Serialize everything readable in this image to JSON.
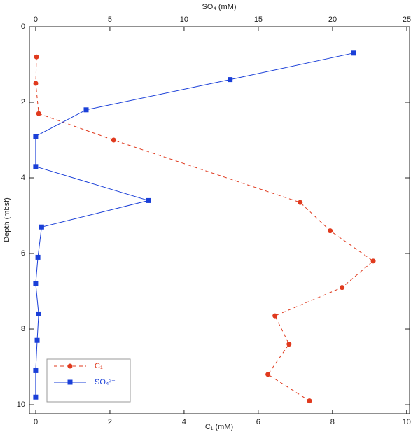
{
  "chart_data": {
    "type": "depth-profile",
    "xlabel": "C₁ (mM)",
    "x2label": "SO₄ (mM)",
    "ylabel": "Depth (mbsf)",
    "xlim": [
      -0.17,
      10.08
    ],
    "xticks": [
      0,
      2,
      4,
      6,
      8,
      10
    ],
    "x2lim": [
      -0.42,
      25.19
    ],
    "x2ticks": [
      0,
      5,
      10,
      15,
      20,
      25
    ],
    "ylim": [
      0,
      10.24
    ],
    "yticks": [
      0,
      2,
      4,
      6,
      8,
      10
    ],
    "y_inverted": true,
    "legend": "lower left",
    "series": [
      {
        "name": "C₁",
        "color": "#e03a1e",
        "axis": "x",
        "marker": "circle",
        "dashed": true,
        "x": [
          0.02,
          0,
          0.08,
          2.1,
          7.13,
          7.94,
          9.1,
          8.26,
          6.45,
          6.83,
          6.26,
          7.38
        ],
        "y": [
          0.8,
          1.5,
          2.3,
          3.0,
          4.65,
          5.4,
          6.2,
          6.9,
          7.65,
          8.4,
          9.2,
          9.9
        ]
      },
      {
        "name": "SO₄²⁻",
        "color": "#1a3fd8",
        "axis": "x2",
        "marker": "square",
        "dashed": false,
        "x": [
          21.4,
          13.1,
          3.4,
          0,
          0,
          7.6,
          0.4,
          0.15,
          0,
          0.2,
          0.1,
          0,
          0
        ],
        "y": [
          0.7,
          1.4,
          2.2,
          2.9,
          3.7,
          4.6,
          5.3,
          6.1,
          6.8,
          7.6,
          8.3,
          9.1,
          9.8
        ]
      }
    ]
  }
}
